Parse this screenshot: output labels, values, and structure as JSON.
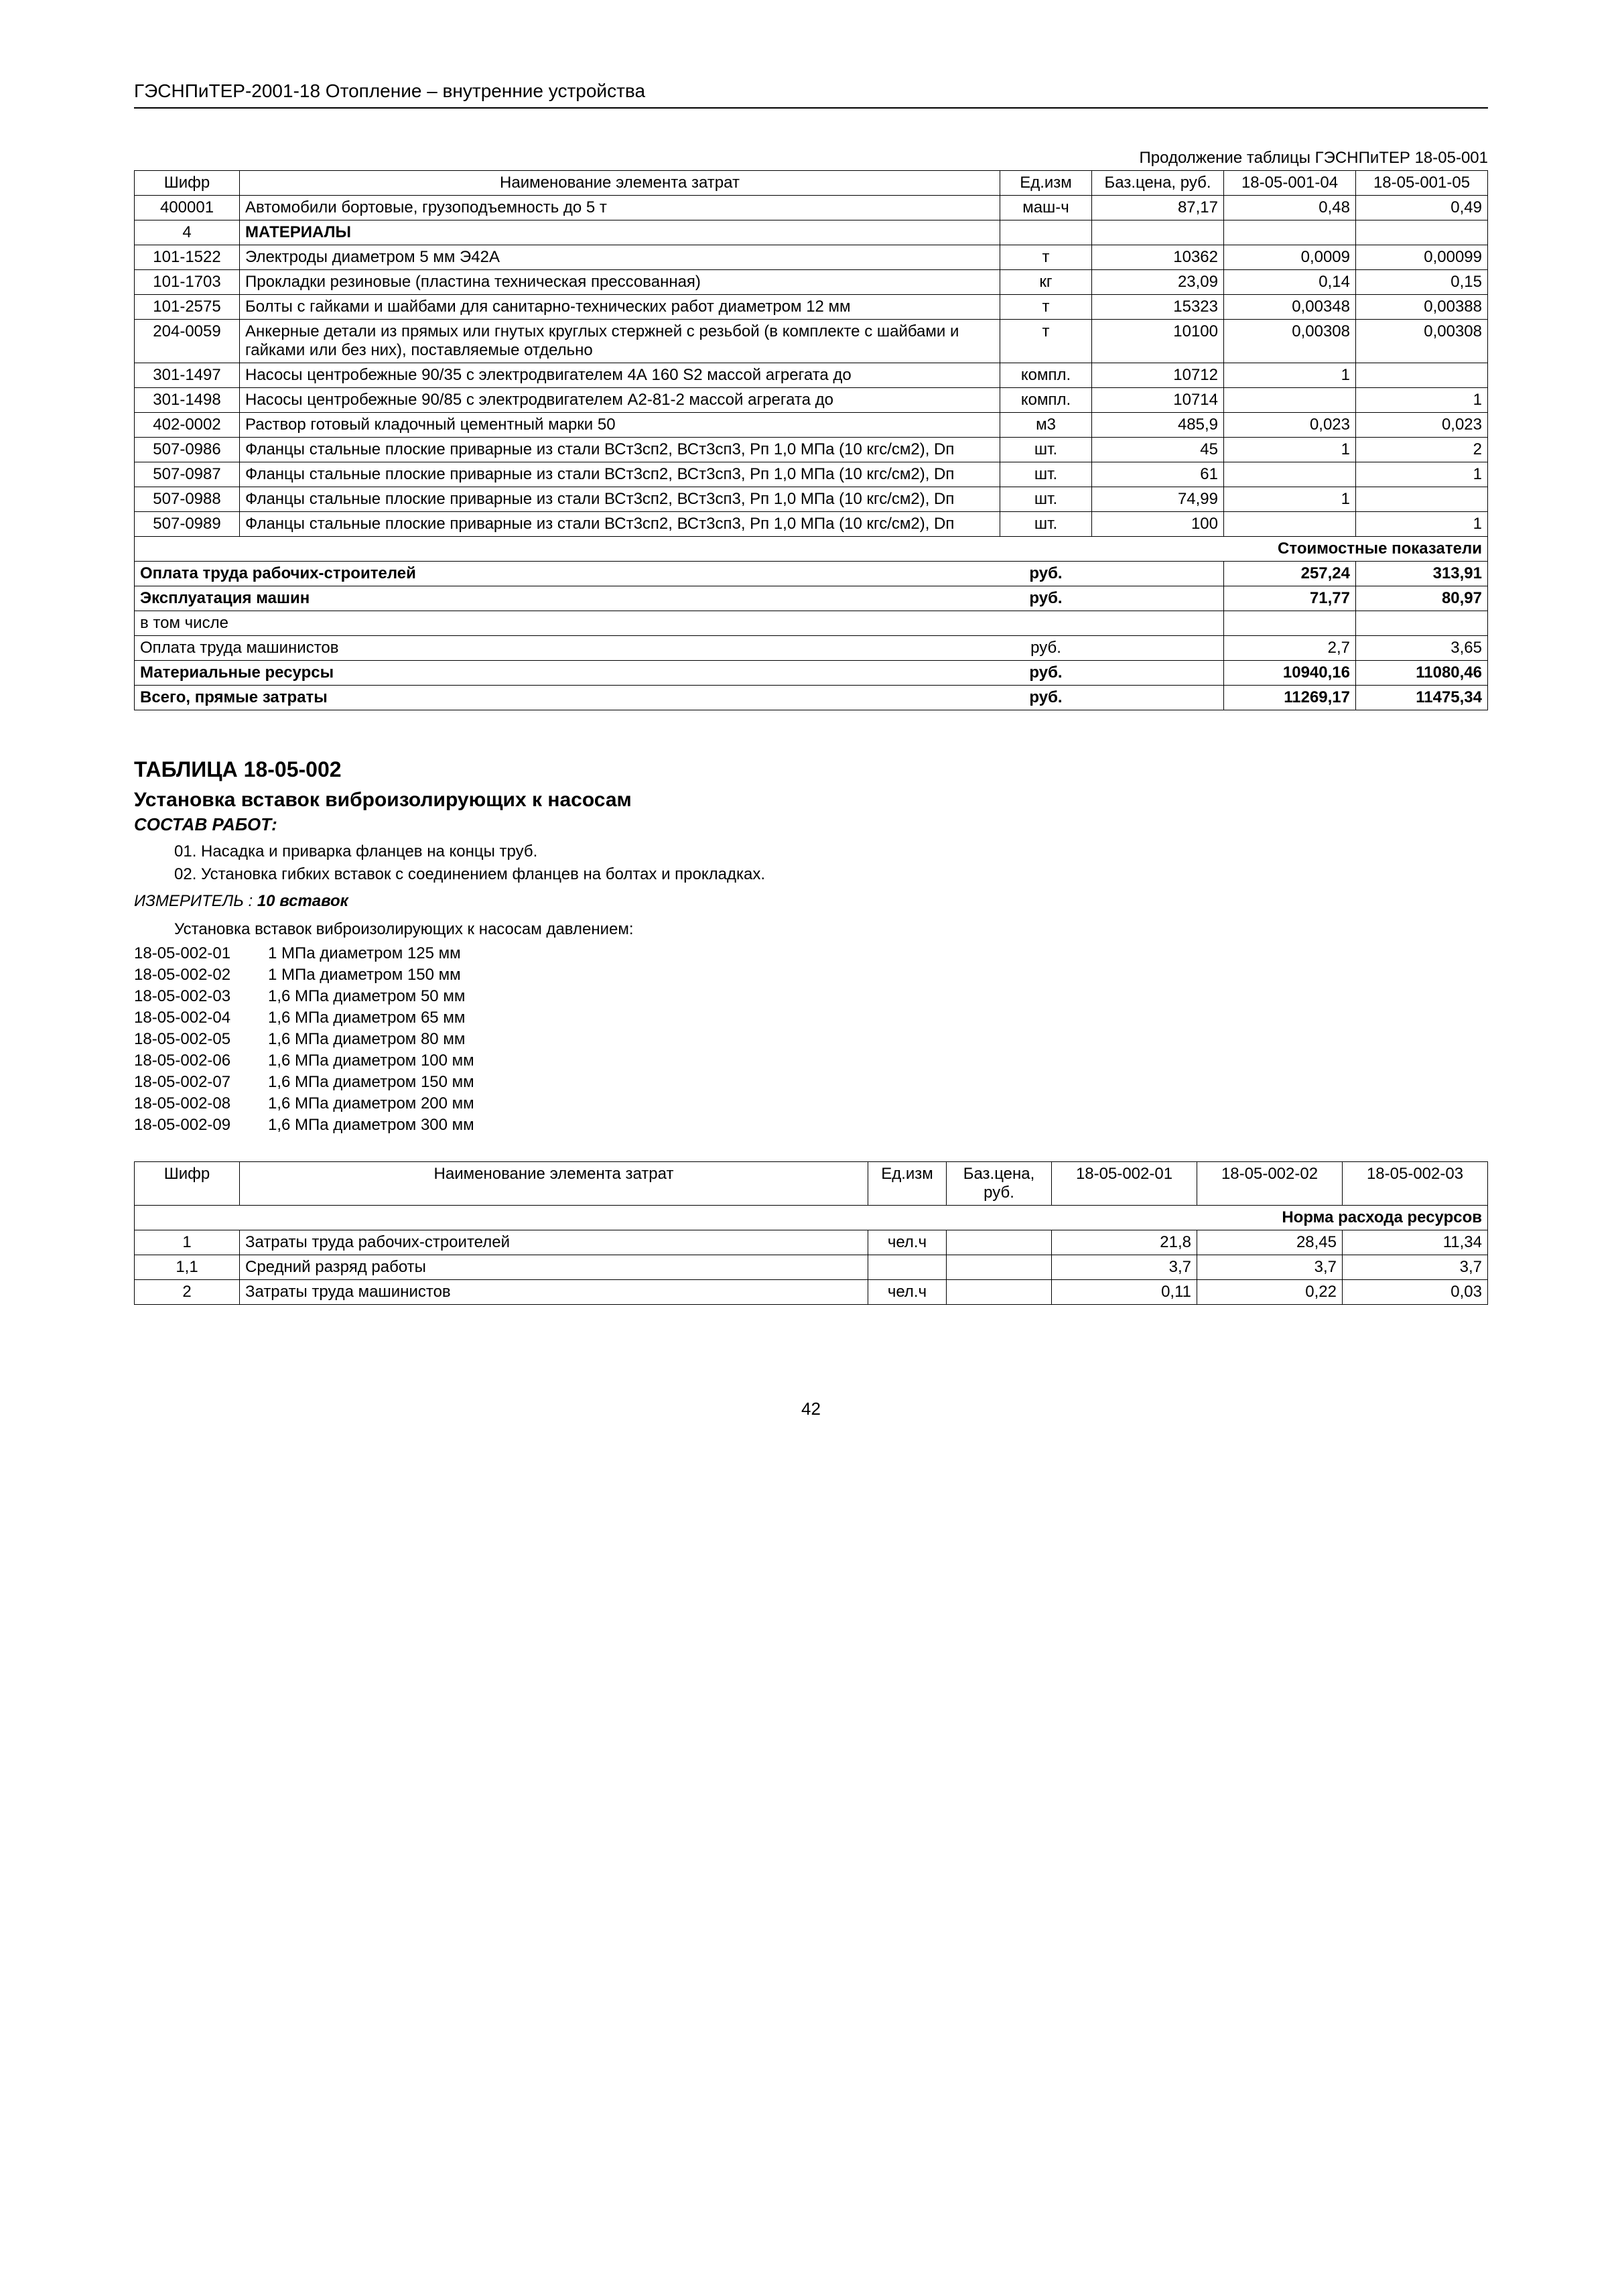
{
  "header": "ГЭСНПиТЕР-2001-18 Отопление – внутренние устройства",
  "continuation": "Продолжение таблицы ГЭСНПиТЕР 18-05-001",
  "table1": {
    "headers": {
      "cipher": "Шифр",
      "name": "Наименование элемента затрат",
      "unit": "Ед.изм",
      "base_price": "Баз.цена, руб.",
      "col1": "18-05-001-04",
      "col2": "18-05-001-05"
    },
    "rows": [
      {
        "cipher": "400001",
        "name": "Автомобили бортовые, грузоподъемность до 5 т",
        "unit": "маш-ч",
        "price": "87,17",
        "v1": "0,48",
        "v2": "0,49"
      },
      {
        "cipher": "4",
        "name": "МАТЕРИАЛЫ",
        "unit": "",
        "price": "",
        "v1": "",
        "v2": "",
        "bold_name": true,
        "center_cipher": true
      },
      {
        "cipher": "101-1522",
        "name": "Электроды диаметром 5 мм Э42А",
        "unit": "т",
        "price": "10362",
        "v1": "0,0009",
        "v2": "0,00099"
      },
      {
        "cipher": "101-1703",
        "name": "Прокладки резиновые (пластина техническая прессованная)",
        "unit": "кг",
        "price": "23,09",
        "v1": "0,14",
        "v2": "0,15"
      },
      {
        "cipher": "101-2575",
        "name": "Болты с гайками и шайбами для санитарно-технических работ диаметром 12 мм",
        "unit": "т",
        "price": "15323",
        "v1": "0,00348",
        "v2": "0,00388"
      },
      {
        "cipher": "204-0059",
        "name": "Анкерные детали из прямых или гнутых круглых стержней с резьбой (в комплекте с шайбами и гайками или без них), поставляемые отдельно",
        "unit": "т",
        "price": "10100",
        "v1": "0,00308",
        "v2": "0,00308"
      },
      {
        "cipher": "301-1497",
        "name": "Насосы центробежные 90/35 с электродвигателем 4А 160 S2 массой агрегата до",
        "unit": "компл.",
        "price": "10712",
        "v1": "1",
        "v2": ""
      },
      {
        "cipher": "301-1498",
        "name": "Насосы центробежные 90/85 с электродвигателем А2-81-2 массой агрегата до",
        "unit": "компл.",
        "price": "10714",
        "v1": "",
        "v2": "1"
      },
      {
        "cipher": "402-0002",
        "name": "Раствор готовый кладочный цементный марки 50",
        "unit": "м3",
        "price": "485,9",
        "v1": "0,023",
        "v2": "0,023"
      },
      {
        "cipher": "507-0986",
        "name": "Фланцы стальные плоские приварные из стали ВСт3сп2, ВСт3сп3, Рп 1,0 МПа (10 кгс/см2), Dп",
        "unit": "шт.",
        "price": "45",
        "v1": "1",
        "v2": "2"
      },
      {
        "cipher": "507-0987",
        "name": "Фланцы стальные плоские приварные из стали ВСт3сп2, ВСт3сп3, Рп 1,0 МПа (10 кгс/см2), Dп",
        "unit": "шт.",
        "price": "61",
        "v1": "",
        "v2": "1"
      },
      {
        "cipher": "507-0988",
        "name": "Фланцы стальные плоские приварные из стали ВСт3сп2, ВСт3сп3, Рп 1,0 МПа (10 кгс/см2), Dп",
        "unit": "шт.",
        "price": "74,99",
        "v1": "1",
        "v2": ""
      },
      {
        "cipher": "507-0989",
        "name": "Фланцы стальные плоские приварные из стали ВСт3сп2, ВСт3сп3, Рп 1,0 МПа (10 кгс/см2), Dп",
        "unit": "шт.",
        "price": "100",
        "v1": "",
        "v2": "1"
      }
    ],
    "cost_indicators_label": "Стоимостные показатели",
    "summary": [
      {
        "label": "Оплата труда рабочих-строителей",
        "unit": "руб.",
        "v1": "257,24",
        "v2": "313,91",
        "bold": true
      },
      {
        "label": "Эксплуатация машин",
        "unit": "руб.",
        "v1": "71,77",
        "v2": "80,97",
        "bold": true
      },
      {
        "label": "в том числе",
        "unit": "",
        "v1": "",
        "v2": "",
        "bold": false
      },
      {
        "label": "Оплата труда машинистов",
        "unit": "руб.",
        "v1": "2,7",
        "v2": "3,65",
        "bold": false
      },
      {
        "label": "Материальные ресурсы",
        "unit": "руб.",
        "v1": "10940,16",
        "v2": "11080,46",
        "bold": true
      },
      {
        "label": "Всего, прямые затраты",
        "unit": "руб.",
        "v1": "11269,17",
        "v2": "11475,34",
        "bold": true
      }
    ]
  },
  "section2": {
    "table_title": "ТАБЛИЦА 18-05-002",
    "subtitle": "Установка вставок виброизолирующих к насосам",
    "sostav_label": "СОСТАВ РАБОТ:",
    "works": [
      "01. Насадка и приварка фланцев на концы труб.",
      "02. Установка гибких вставок с соединением фланцев на болтах и прокладках."
    ],
    "measure_label_prefix": "ИЗМЕРИТЕЛЬ : ",
    "measure_value": "10 вставок",
    "intro": "Установка вставок виброизолирующих к насосам давлением:",
    "variants": [
      {
        "code": "18-05-002-01",
        "desc": "1 МПа диаметром 125 мм"
      },
      {
        "code": "18-05-002-02",
        "desc": "1 МПа диаметром 150 мм"
      },
      {
        "code": "18-05-002-03",
        "desc": "1,6 МПа диаметром 50 мм"
      },
      {
        "code": "18-05-002-04",
        "desc": "1,6 МПа диаметром 65 мм"
      },
      {
        "code": "18-05-002-05",
        "desc": "1,6 МПа диаметром 80 мм"
      },
      {
        "code": "18-05-002-06",
        "desc": "1,6 МПа диаметром 100 мм"
      },
      {
        "code": "18-05-002-07",
        "desc": "1,6 МПа диаметром 150 мм"
      },
      {
        "code": "18-05-002-08",
        "desc": "1,6 МПа диаметром 200 мм"
      },
      {
        "code": "18-05-002-09",
        "desc": "1,6 МПа диаметром 300 мм"
      }
    ]
  },
  "table2": {
    "headers": {
      "cipher": "Шифр",
      "name": "Наименование элемента затрат",
      "unit": "Ед.изм",
      "base_price": "Баз.цена, руб.",
      "c1": "18-05-002-01",
      "c2": "18-05-002-02",
      "c3": "18-05-002-03"
    },
    "consumption_label": "Норма расхода ресурсов",
    "rows": [
      {
        "cipher": "1",
        "name": "Затраты труда рабочих-строителей",
        "unit": "чел.ч",
        "price": "",
        "v1": "21,8",
        "v2": "28,45",
        "v3": "11,34"
      },
      {
        "cipher": "1,1",
        "name": "Средний разряд работы",
        "unit": "",
        "price": "",
        "v1": "3,7",
        "v2": "3,7",
        "v3": "3,7"
      },
      {
        "cipher": "2",
        "name": "Затраты труда машинистов",
        "unit": "чел.ч",
        "price": "",
        "v1": "0,11",
        "v2": "0,22",
        "v3": "0,03"
      }
    ]
  },
  "page_number": "42"
}
